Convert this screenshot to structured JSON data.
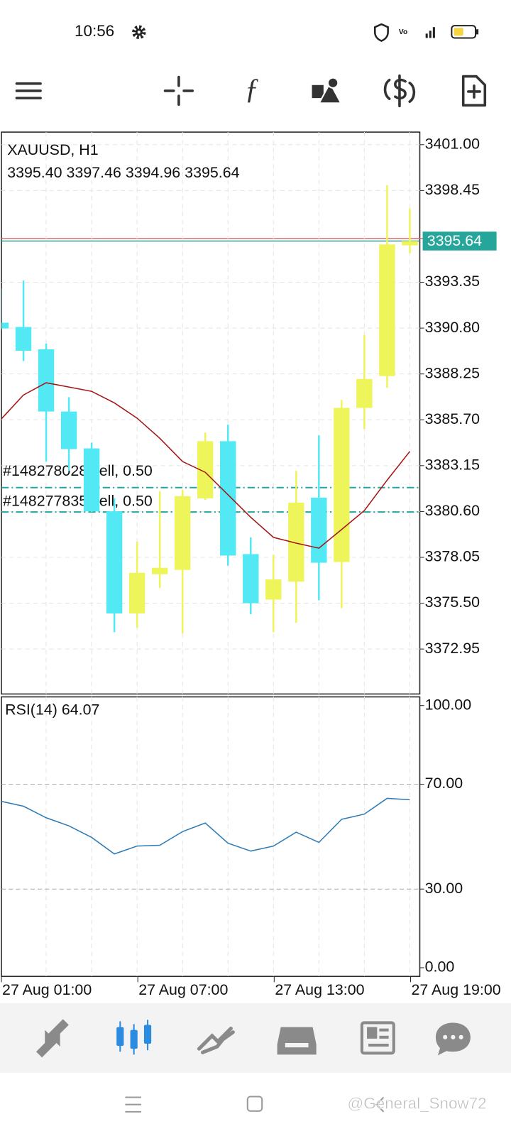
{
  "status_bar": {
    "time": "10:56"
  },
  "watermark": "@General_Snow72",
  "chart_data": [
    {
      "type": "candlestick",
      "title": "XAUUSD, H1",
      "ohlc_text": "3395.40 3397.46 3394.96 3395.64",
      "open": [
        3391.1,
        3390.86,
        3389.62,
        3386.16,
        3384.11,
        3380.61,
        3374.93,
        3377.11,
        3377.35,
        3381.33,
        3384.51,
        3378.23,
        3375.7,
        3376.7,
        3381.37,
        3377.79,
        3386.36,
        3388.13,
        3395.4
      ],
      "high": [
        3393.0,
        3393.44,
        3389.94,
        3386.96,
        3384.43,
        3381.33,
        3378.92,
        3381.73,
        3381.81,
        3384.99,
        3385.43,
        3379.16,
        3378.19,
        3382.86,
        3384.83,
        3386.8,
        3390.42,
        3398.75,
        3397.46
      ],
      "low": [
        3390.7,
        3388.97,
        3383.38,
        3382.86,
        3380.57,
        3373.89,
        3374.13,
        3376.34,
        3373.81,
        3381.25,
        3377.59,
        3374.89,
        3373.89,
        3374.41,
        3375.66,
        3375.22,
        3385.19,
        3387.48,
        3394.96
      ],
      "close": [
        3390.78,
        3389.54,
        3386.16,
        3384.07,
        3380.61,
        3374.93,
        3377.19,
        3377.47,
        3381.45,
        3384.51,
        3378.15,
        3375.5,
        3376.82,
        3381.09,
        3377.75,
        3386.36,
        3387.97,
        3395.45,
        3395.64
      ],
      "up_color": "#eef55a",
      "down_color": "#52e9f5",
      "moving_average": {
        "color": "#a31515",
        "values": [
          3385.71,
          3387.08,
          3387.76,
          3387.52,
          3387.28,
          3386.64,
          3385.79,
          3384.67,
          3383.38,
          3382.78,
          3381.53,
          3380.28,
          3379.16,
          3378.84,
          3378.56,
          3379.6,
          3380.65,
          3382.34,
          3383.94
        ]
      },
      "current_price": 3395.64,
      "current_price_color": "#26a69a",
      "ask_price": 3395.78,
      "ask_color": "#e06666",
      "orders": [
        {
          "label": "#148278028 sell, 0.50",
          "price": 3381.93
        },
        {
          "label": "#148277835 sell, 0.50",
          "price": 3380.57
        }
      ],
      "order_color": "#26a69a",
      "ylim": [
        3370.45,
        3401.7
      ],
      "yticks": [
        {
          "value": 3401,
          "label": "3401.00"
        },
        3398.45,
        3393.35,
        {
          "value": 3390.8,
          "label": "3390.80"
        },
        3388.25,
        {
          "value": 3385.7,
          "label": "3385.70"
        },
        3383.15,
        {
          "value": 3380.6,
          "label": "3380.60"
        },
        3378.05,
        {
          "value": 3375.5,
          "label": "3375.50"
        },
        3372.95
      ],
      "grid": true
    },
    {
      "type": "line",
      "title": "RSI(14) 64.07",
      "categories": [
        "27 Aug 01:00",
        null,
        null,
        null,
        null,
        null,
        "27 Aug 07:00",
        null,
        null,
        null,
        null,
        null,
        "27 Aug 13:00",
        null,
        null,
        null,
        null,
        null,
        "27 Aug 19:00"
      ],
      "series": [
        {
          "color": "#2e7bb5",
          "values": [
            63.5,
            61.6,
            57.2,
            54.1,
            49.7,
            43.4,
            46.4,
            46.7,
            51.9,
            55.2,
            47.5,
            44.5,
            46.4,
            51.7,
            47.8,
            56.6,
            58.6,
            64.6,
            64.07
          ]
        }
      ],
      "levels": [
        70,
        30
      ],
      "ylim": [
        -3.3,
        103.3
      ],
      "yticks": [
        {
          "value": 100,
          "label": "100.00"
        },
        {
          "value": 70,
          "label": "70.00"
        },
        {
          "value": 30,
          "label": "30.00"
        },
        {
          "value": 0,
          "label": "0.00"
        }
      ]
    }
  ]
}
